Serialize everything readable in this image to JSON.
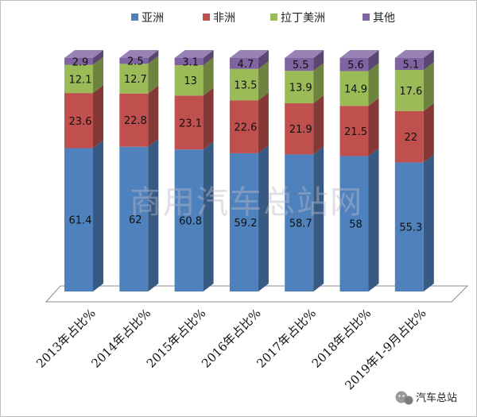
{
  "chart_data": {
    "type": "bar",
    "stacked": true,
    "categories": [
      "2013年占比%",
      "2014年占比%",
      "2015年占比%",
      "2016年占比%",
      "2017年占比%",
      "2018年占比%",
      "2019年1-9月占比%"
    ],
    "series": [
      {
        "name": "亚洲",
        "color": "#4f81bd",
        "values": [
          61.4,
          62,
          60.8,
          59.2,
          58.7,
          58,
          55.3
        ]
      },
      {
        "name": "非洲",
        "color": "#c0504d",
        "values": [
          23.6,
          22.8,
          23.1,
          22.6,
          21.9,
          21.5,
          22
        ]
      },
      {
        "name": "拉丁美洲",
        "color": "#9bbb59",
        "values": [
          12.1,
          12.7,
          13,
          13.5,
          13.9,
          14.9,
          17.6
        ]
      },
      {
        "name": "其他",
        "color": "#8064a2",
        "values": [
          2.9,
          2.5,
          3.1,
          4.7,
          5.5,
          5.6,
          5.1
        ]
      }
    ],
    "legend_position": "top",
    "data_labels": true,
    "grid": false,
    "ylim": [
      0,
      100
    ]
  },
  "watermark": "商用汽车总站网",
  "brand": {
    "name": "汽车总站",
    "icon": "wechat-icon"
  }
}
